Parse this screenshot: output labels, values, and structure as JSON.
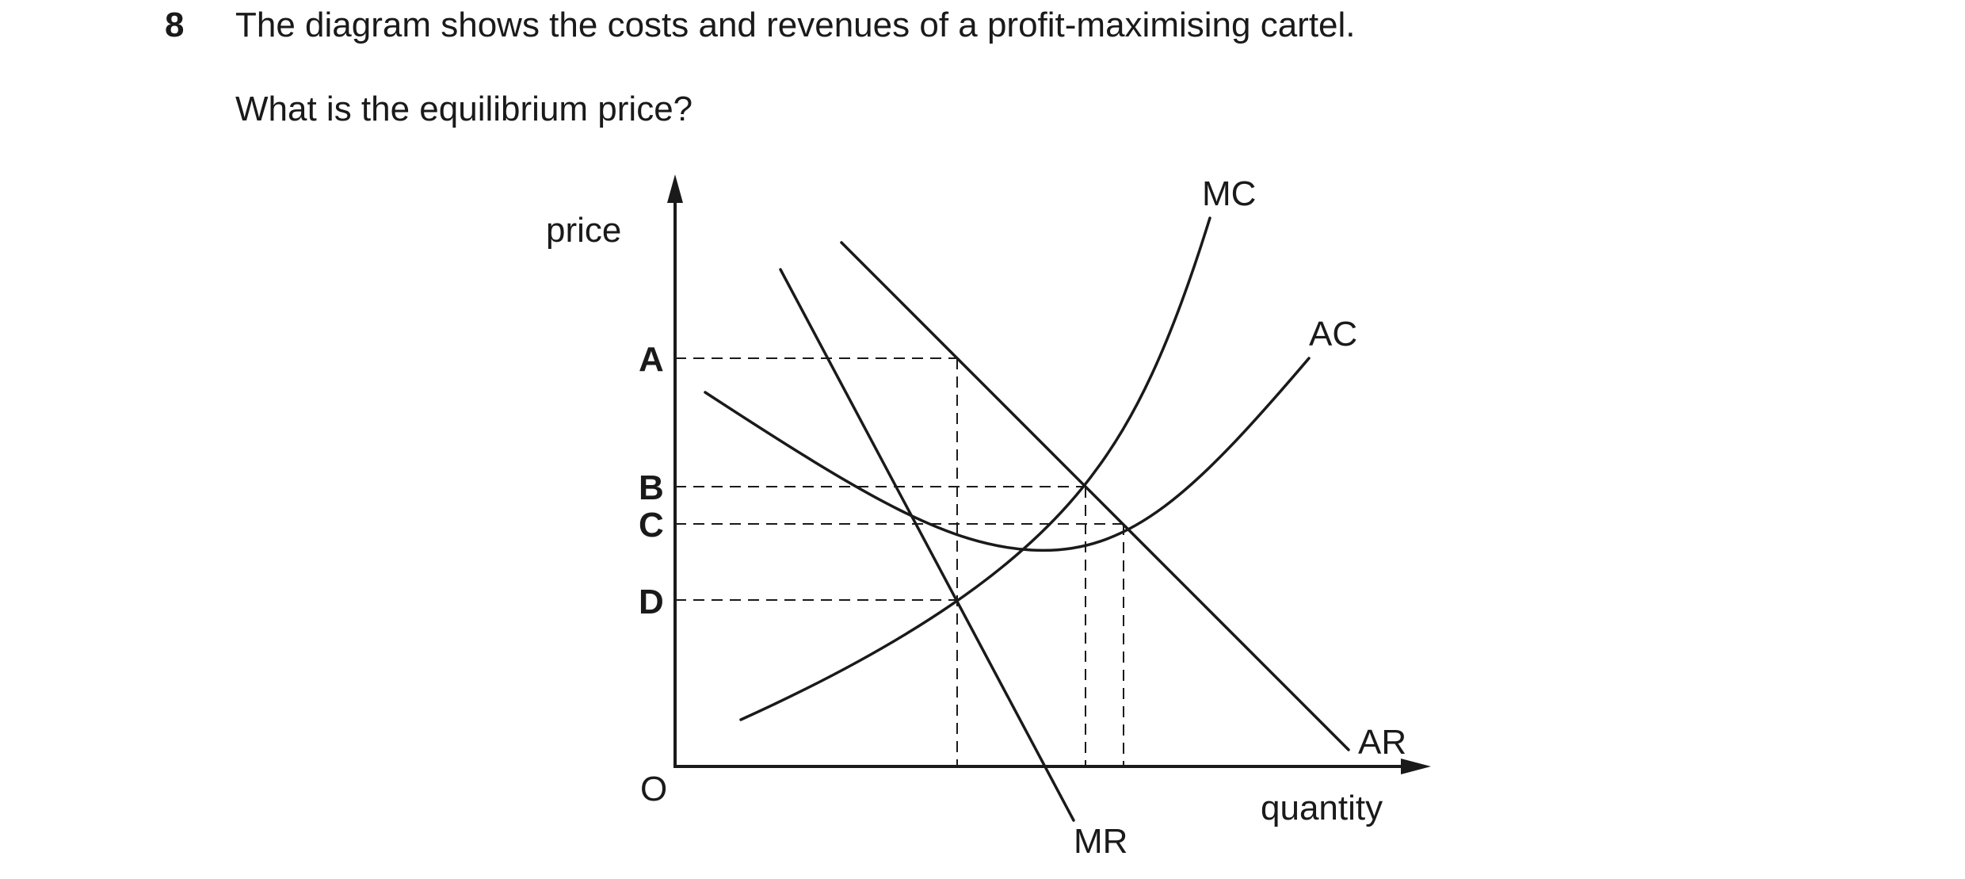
{
  "question": {
    "number": "8",
    "text": "The diagram shows the costs and revenues of a profit-maximising cartel.",
    "prompt": "What is the equilibrium price?"
  },
  "diagram": {
    "axis_labels": {
      "y": "price",
      "x": "quantity",
      "origin": "O"
    },
    "price_levels": [
      "A",
      "B",
      "C",
      "D"
    ],
    "curves": {
      "mc": "MC",
      "ac": "AC",
      "ar": "AR",
      "mr": "MR"
    }
  }
}
